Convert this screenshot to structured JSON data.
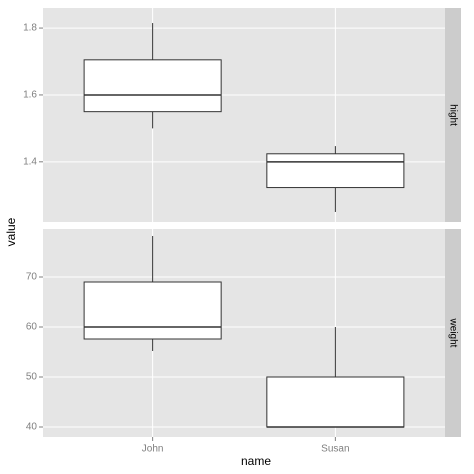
{
  "chart_data": {
    "type": "box",
    "x_label": "name",
    "y_label": "value",
    "categories": [
      "John",
      "Susan"
    ],
    "facets": [
      {
        "label": "hight",
        "ylim": [
          1.22,
          1.86
        ],
        "yticks": [
          1.4,
          1.6,
          1.8
        ],
        "boxes": [
          {
            "min": 1.5,
            "q1": 1.55,
            "median": 1.6,
            "q3": 1.705,
            "max": 1.815
          },
          {
            "min": 1.25,
            "q1": 1.323,
            "median": 1.4,
            "q3": 1.424,
            "max": 1.447
          }
        ]
      },
      {
        "label": "weight",
        "ylim": [
          38,
          79.6
        ],
        "yticks": [
          40,
          50,
          60,
          70
        ],
        "boxes": [
          {
            "min": 55.2,
            "q1": 57.6,
            "median": 60,
            "q3": 69,
            "max": 78.2
          },
          {
            "min": 40,
            "q1": 40,
            "median": 40,
            "q3": 50,
            "max": 60
          }
        ]
      }
    ]
  }
}
